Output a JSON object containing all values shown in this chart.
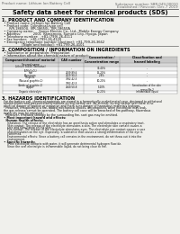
{
  "bg_color": "#f0f0ec",
  "header_left": "Product name: Lithium Ion Battery Cell",
  "header_right_line1": "Substance number: SBR-049-00010",
  "header_right_line2": "Established / Revision: Dec.7 2019",
  "main_title": "Safety data sheet for chemical products (SDS)",
  "section1_title": "1. PRODUCT AND COMPANY IDENTIFICATION",
  "section1_lines": [
    "  • Product name: Lithium Ion Battery Cell",
    "  • Product code: Cylindrical-type cell",
    "       IVR-18650U, IVR-18650L, IVR-18650A",
    "  • Company name:     Sanyo Electric Co., Ltd., Mobile Energy Company",
    "  • Address:            2001  Kamamoto, Sumoto City, Hyogo, Japan",
    "  • Telephone number:   +81-(799)-26-4111",
    "  • Fax number:   +81-(799)-26-4120",
    "  • Emergency telephone number (daytime): +81-799-26-3662",
    "                    [Night and holiday]: +81-799-26-4101"
  ],
  "section2_title": "2. COMPOSITION / INFORMATION ON INGREDIENTS",
  "section2_sub1": "  • Substance or preparation: Preparation",
  "section2_sub2": "  • Information about the chemical nature of product:",
  "table_headers": [
    "Component/chemical material",
    "CAS number",
    "Concentration /\nConcentration range",
    "Classification and\nhazard labeling"
  ],
  "table_col1_header": "Several name",
  "table_rows": [
    [
      "Lithium cobalt (tentative)\n(LiMnCoO₂)",
      "-",
      "30-40%",
      "-"
    ],
    [
      "Iron",
      "7439-89-6",
      "15-20%",
      "-"
    ],
    [
      "Aluminum",
      "7429-90-5",
      "2-8%",
      "-"
    ],
    [
      "Graphite\n(Natural graphite-1)\n(Artificial graphite-1)",
      "7782-42-5\n7782-42-5",
      "10-20%",
      "-"
    ],
    [
      "Copper",
      "7440-50-8",
      "5-10%",
      "Sensitization of the skin\ngroup No.2"
    ],
    [
      "Organic electrolyte",
      "-",
      "10-20%",
      "Inflammable liquid"
    ]
  ],
  "section3_title": "3. HAZARDS IDENTIFICATION",
  "section3_para1": "  For the battery cell, chemical materials are stored in a hermetically-sealed metal case, designed to withstand",
  "section3_para2": "  temperatures and pressures/deformations during normal use. As a result, during normal use, there is no",
  "section3_para3": "  physical danger of ignition or explosion and there is no danger of hazardous materials leakage.",
  "section3_para4": "    However, if exposed to a fire, added mechanical shocks, decomposed, when electrolyte may leak,",
  "section3_para5": "  the gas release cannot be operated. The battery cell case will be breached of fire-pathway, hazardous",
  "section3_para6": "  materials may be released.",
  "section3_para7": "    Moreover, if heated strongly by the surrounding fire, soot gas may be emitted.",
  "section3_bullet1": "  • Most important hazard and effects:",
  "section3_human": "    Human health effects:",
  "section3_human_lines": [
    "      Inhalation: The release of the electrolyte has an anesthesia action and stimulates a respiratory tract.",
    "      Skin contact: The release of the electrolyte stimulates a skin. The electrolyte skin contact causes a",
    "      sore and stimulation on the skin.",
    "      Eye contact: The release of the electrolyte stimulates eyes. The electrolyte eye contact causes a sore",
    "      and stimulation on the eye. Especially, a substance that causes a strong inflammation of the eye is",
    "      confirmed.",
    "      Environmental effects: Since a battery cell remains in the environment, do not throw out it into the",
    "      environment."
  ],
  "section3_specific": "  • Specific hazards:",
  "section3_specific_lines": [
    "      If the electrolyte contacts with water, it will generate detrimental hydrogen fluoride.",
    "      Since the seal electrolyte is inflammable liquid, do not bring close to fire."
  ],
  "line_color": "#444444",
  "text_color": "#111111",
  "title_color": "#000000"
}
